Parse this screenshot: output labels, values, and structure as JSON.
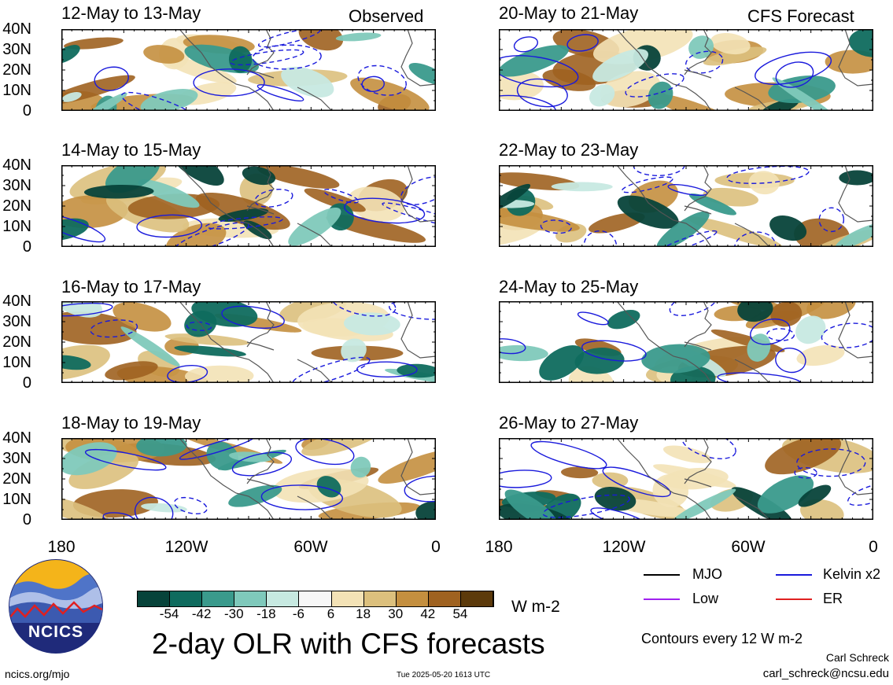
{
  "panels": [
    {
      "title": "12-May to 13-May",
      "tag": "Observed"
    },
    {
      "title": "20-May to 21-May",
      "tag": "CFS Forecast"
    },
    {
      "title": "14-May to 15-May",
      "tag": ""
    },
    {
      "title": "22-May to 23-May",
      "tag": ""
    },
    {
      "title": "16-May to 17-May",
      "tag": ""
    },
    {
      "title": "24-May to 25-May",
      "tag": ""
    },
    {
      "title": "18-May to 19-May",
      "tag": ""
    },
    {
      "title": "26-May to 27-May",
      "tag": ""
    }
  ],
  "yticks": [
    "40N",
    "30N",
    "20N",
    "10N",
    "0"
  ],
  "xticks": [
    "180",
    "120W",
    "60W",
    "0"
  ],
  "colorbar": {
    "colors": [
      "#07433a",
      "#0f6b5e",
      "#3a9a8c",
      "#7fc9bb",
      "#c7e9e1",
      "#f7f7f7",
      "#f3e2b6",
      "#dcc07d",
      "#c48f3f",
      "#9f6220",
      "#5c3a0b"
    ],
    "ticks": [
      "-54",
      "-42",
      "-30",
      "-18",
      "-6",
      "6",
      "18",
      "30",
      "42",
      "54"
    ],
    "units": "W m-2"
  },
  "legend": [
    {
      "label": "MJO",
      "color": "#000000"
    },
    {
      "label": "Kelvin x2",
      "color": "#1a1adc"
    },
    {
      "label": "Low",
      "color": "#a020f0"
    },
    {
      "label": "ER",
      "color": "#e02020"
    }
  ],
  "main_title": "2-day OLR with CFS forecasts",
  "contour_note": "Contours every 12 W m-2",
  "author": "Carl Schreck",
  "email": "carl_schreck@ncsu.edu",
  "site": "ncics.org/mjo",
  "timestamp": "Tue 2025-05-20 1613 UTC",
  "logo_text": "NCICS"
}
